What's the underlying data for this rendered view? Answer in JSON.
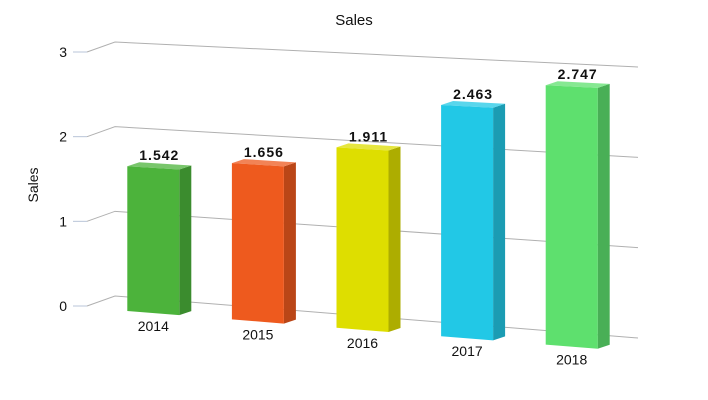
{
  "chart_data": {
    "type": "bar",
    "title": "Sales",
    "ylabel": "Sales",
    "xlabel": "",
    "categories": [
      "2014",
      "2015",
      "2016",
      "2017",
      "2018"
    ],
    "values": [
      1.542,
      1.656,
      1.911,
      2.463,
      2.747
    ],
    "data_labels": [
      "1.542",
      "1.656",
      "1.911",
      "2.463",
      "2.747"
    ],
    "yticks": [
      "0",
      "1",
      "2",
      "3"
    ],
    "ylim": [
      0,
      3
    ],
    "grid": true,
    "legend": "none",
    "colors": [
      "#4cb33b",
      "#ee5a1e",
      "#dede00",
      "#22c8e6",
      "#5ee06e"
    ]
  }
}
